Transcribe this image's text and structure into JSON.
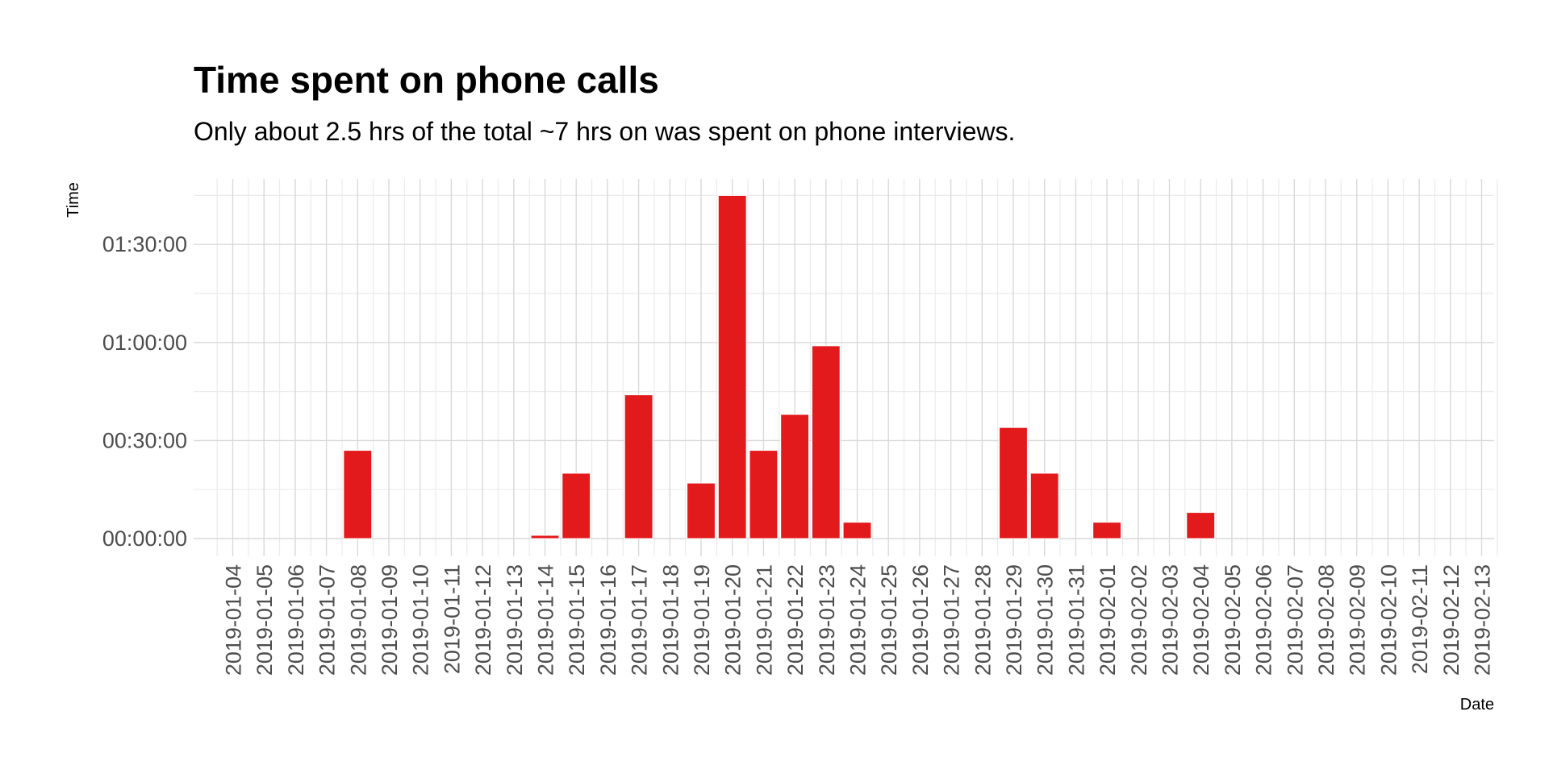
{
  "chart_data": {
    "type": "bar",
    "title": "Time spent on phone calls",
    "subtitle": "Only about 2.5 hrs of the total ~7 hrs on was spent on phone interviews.",
    "xlabel": "Date",
    "ylabel": "Time",
    "bar_color": "#e31a1c",
    "grid_color": "#d9d9d9",
    "grid": true,
    "y_unit": "minutes",
    "ylim": [
      -5,
      110
    ],
    "yticks": [
      {
        "value": 0,
        "label": "00:00:00"
      },
      {
        "value": 30,
        "label": "00:30:00"
      },
      {
        "value": 60,
        "label": "01:00:00"
      },
      {
        "value": 90,
        "label": "01:30:00"
      }
    ],
    "categories": [
      "2019-01-04",
      "2019-01-05",
      "2019-01-06",
      "2019-01-07",
      "2019-01-08",
      "2019-01-09",
      "2019-01-10",
      "2019-01-11",
      "2019-01-12",
      "2019-01-13",
      "2019-01-14",
      "2019-01-15",
      "2019-01-16",
      "2019-01-17",
      "2019-01-18",
      "2019-01-19",
      "2019-01-20",
      "2019-01-21",
      "2019-01-22",
      "2019-01-23",
      "2019-01-24",
      "2019-01-25",
      "2019-01-26",
      "2019-01-27",
      "2019-01-28",
      "2019-01-29",
      "2019-01-30",
      "2019-01-31",
      "2019-02-01",
      "2019-02-02",
      "2019-02-03",
      "2019-02-04",
      "2019-02-05",
      "2019-02-06",
      "2019-02-07",
      "2019-02-08",
      "2019-02-09",
      "2019-02-10",
      "2019-02-11",
      "2019-02-12",
      "2019-02-13"
    ],
    "values": [
      0,
      0,
      0,
      0,
      27,
      0,
      0,
      0,
      0,
      0,
      1,
      20,
      0,
      44,
      0,
      17,
      105,
      27,
      38,
      59,
      5,
      0,
      0,
      0,
      0,
      34,
      20,
      0,
      5,
      0,
      0,
      8,
      0,
      0,
      0,
      0,
      0,
      0,
      0,
      0,
      0
    ]
  }
}
